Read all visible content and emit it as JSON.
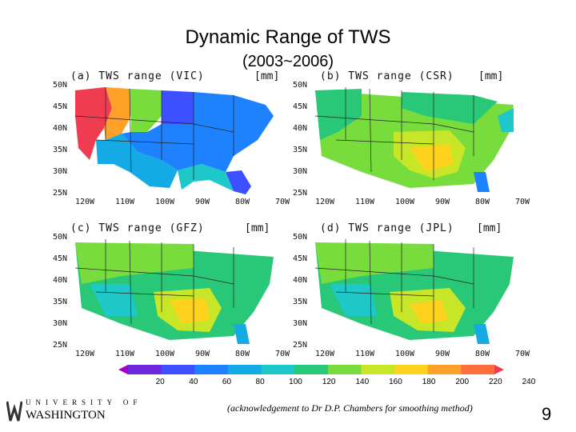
{
  "slide": {
    "title": "Dynamic Range of TWS",
    "subtitle": "(2003~2006)",
    "acknowledgement": "(acknowledgement to Dr D.P. Chambers for smoothing method)",
    "page_number": "9",
    "logo": {
      "univ": "UNIVERSITY OF",
      "name": "WASHINGTON"
    }
  },
  "panels": [
    {
      "id": "a",
      "label": "(a) TWS range (VIC)",
      "unit": "[mm]"
    },
    {
      "id": "b",
      "label": "(b) TWS range (CSR)",
      "unit": "[mm]"
    },
    {
      "id": "c",
      "label": "(c) TWS range (GFZ)",
      "unit": "[mm]"
    },
    {
      "id": "d",
      "label": "(d) TWS range (JPL)",
      "unit": "[mm]"
    }
  ],
  "axes": {
    "lat_labels": [
      "50N",
      "45N",
      "40N",
      "35N",
      "30N",
      "25N"
    ],
    "lon_labels": [
      "120W",
      "110W",
      "100W",
      "90W",
      "80W",
      "70W"
    ]
  },
  "colorbar": {
    "ticks": [
      "20",
      "40",
      "60",
      "80",
      "100",
      "120",
      "140",
      "160",
      "180",
      "200",
      "220",
      "240"
    ],
    "colors": [
      "#a000c8",
      "#6e28dc",
      "#3c50ff",
      "#1e82ff",
      "#14aae6",
      "#1ec8c8",
      "#28c878",
      "#78dc3c",
      "#c8e628",
      "#ffd21e",
      "#ffa028",
      "#ff6e3c",
      "#f03c50"
    ]
  }
}
